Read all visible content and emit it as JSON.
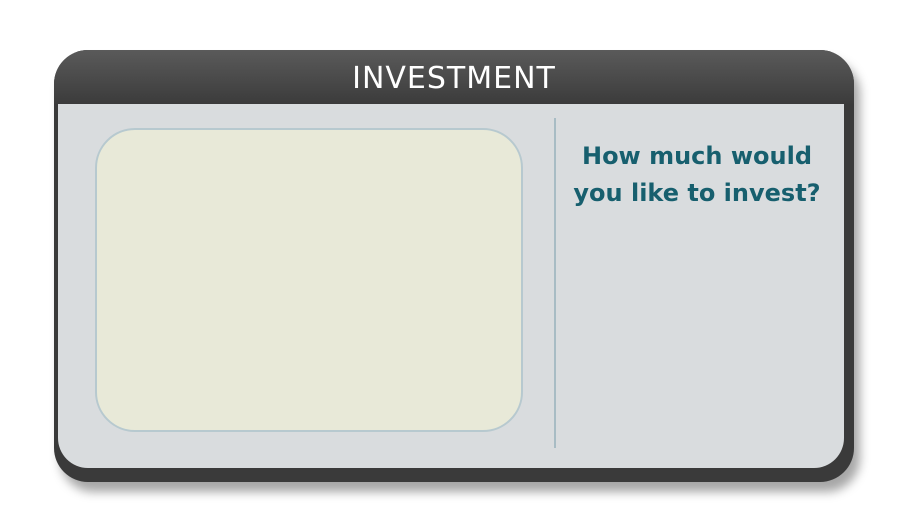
{
  "window": {
    "title": "INVESTMENT"
  },
  "main": {
    "question": "How much would you like to invest?"
  },
  "colors": {
    "frame": "#3a3a3a",
    "header": "#4b4b4b",
    "body_bg": "#d9dcde",
    "input_panel_bg": "#e8e9d8",
    "input_panel_border": "#b7c9cf",
    "question_text": "#175f6e",
    "divider": "#a8bcc4"
  }
}
